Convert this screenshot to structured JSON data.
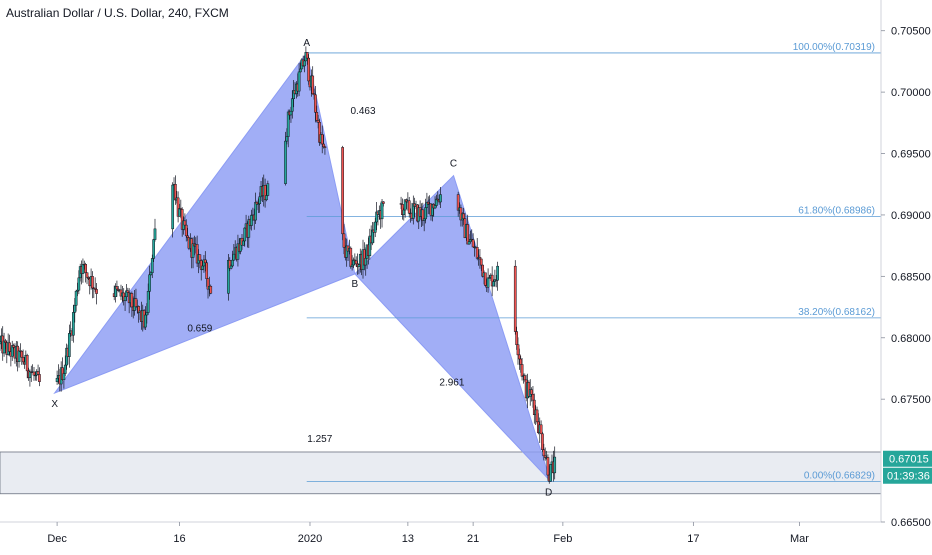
{
  "header": {
    "title": "Australian Dollar / U.S. Dollar, 240, FXCM"
  },
  "colors": {
    "up": "#26a69a",
    "down": "#ef5350",
    "candle": "#131722",
    "pattern_fill": "#8c9cf4",
    "fib_line": "#5b9bd5",
    "axis_text": "#131722",
    "last_price_bg": "#26a69a",
    "zone_fill": "#e9ecf2"
  },
  "chart_data": {
    "type": "candlestick",
    "ylim": [
      0.665,
      0.7075
    ],
    "x_range_days": [
      -7,
      101
    ],
    "x_ticks": [
      {
        "label": "Dec",
        "day": 0
      },
      {
        "label": "16",
        "day": 15
      },
      {
        "label": "2020",
        "day": 31
      },
      {
        "label": "13",
        "day": 43
      },
      {
        "label": "21",
        "day": 51
      },
      {
        "label": "Feb",
        "day": 62
      },
      {
        "label": "17",
        "day": 78
      },
      {
        "label": "Mar",
        "day": 91
      }
    ],
    "y_ticks": [
      "0.70500",
      "0.70000",
      "0.69500",
      "0.69000",
      "0.68500",
      "0.68000",
      "0.67500",
      "0.66500"
    ],
    "y_tick_values": [
      0.705,
      0.7,
      0.695,
      0.69,
      0.685,
      0.68,
      0.675,
      0.665
    ],
    "harmonic_points": [
      {
        "label": "X",
        "day": -0.3,
        "price": 0.6755
      },
      {
        "label": "A",
        "day": 30.6,
        "price": 0.7032
      },
      {
        "label": "B",
        "day": 36.5,
        "price": 0.6852
      },
      {
        "label": "C",
        "day": 48.6,
        "price": 0.6932
      },
      {
        "label": "D",
        "day": 60.5,
        "price": 0.6683
      }
    ],
    "ratios": [
      {
        "text": "0.463",
        "day": 37.5,
        "price": 0.6982
      },
      {
        "text": "0.659",
        "day": 17.5,
        "price": 0.6805
      },
      {
        "text": "2.961",
        "day": 48.4,
        "price": 0.6761
      },
      {
        "text": "1.257",
        "day": 32.2,
        "price": 0.6715
      }
    ],
    "fib_levels": [
      {
        "label": "100.00%(0.70319)",
        "value": 0.70319
      },
      {
        "label": "61.80%(0.68986)",
        "value": 0.68986
      },
      {
        "label": "38.20%(0.68162)",
        "value": 0.68162
      },
      {
        "label": "0.00%(0.66829)",
        "value": 0.66829
      }
    ],
    "zone": [
      0.6673,
      0.6707
    ],
    "last_price": {
      "price": "0.67015",
      "value": 0.67015,
      "countdown": "01:39:36"
    },
    "waypoints": [
      [
        -7,
        0.6795
      ],
      [
        -4,
        0.6782
      ],
      [
        -2,
        0.6762
      ],
      [
        -0.3,
        0.6755
      ],
      [
        1,
        0.6775
      ],
      [
        2,
        0.681
      ],
      [
        3,
        0.686
      ],
      [
        5,
        0.684
      ],
      [
        7,
        0.6838
      ],
      [
        9,
        0.683
      ],
      [
        11,
        0.6812
      ],
      [
        12,
        0.688
      ],
      [
        13,
        0.692
      ],
      [
        14,
        0.6945
      ],
      [
        15,
        0.6905
      ],
      [
        16,
        0.688
      ],
      [
        18,
        0.686
      ],
      [
        19,
        0.684
      ],
      [
        21,
        0.686
      ],
      [
        23,
        0.688
      ],
      [
        25,
        0.6915
      ],
      [
        27,
        0.6925
      ],
      [
        28,
        0.696
      ],
      [
        29,
        0.6995
      ],
      [
        30,
        0.7015
      ],
      [
        30.6,
        0.703
      ],
      [
        31.5,
        0.7
      ],
      [
        32.5,
        0.696
      ],
      [
        33.5,
        0.694
      ],
      [
        34.5,
        0.69
      ],
      [
        35.5,
        0.687
      ],
      [
        36.5,
        0.686
      ],
      [
        38,
        0.6865
      ],
      [
        39.5,
        0.69
      ],
      [
        41,
        0.6912
      ],
      [
        43,
        0.6905
      ],
      [
        45,
        0.69
      ],
      [
        47,
        0.6915
      ],
      [
        48.6,
        0.693
      ],
      [
        50,
        0.689
      ],
      [
        51.5,
        0.687
      ],
      [
        53,
        0.6845
      ],
      [
        54.5,
        0.6855
      ],
      [
        55.5,
        0.684
      ],
      [
        56.5,
        0.68
      ],
      [
        57.5,
        0.676
      ],
      [
        58.5,
        0.675
      ],
      [
        59.5,
        0.672
      ],
      [
        60.5,
        0.669
      ],
      [
        61.5,
        0.6698
      ]
    ]
  }
}
